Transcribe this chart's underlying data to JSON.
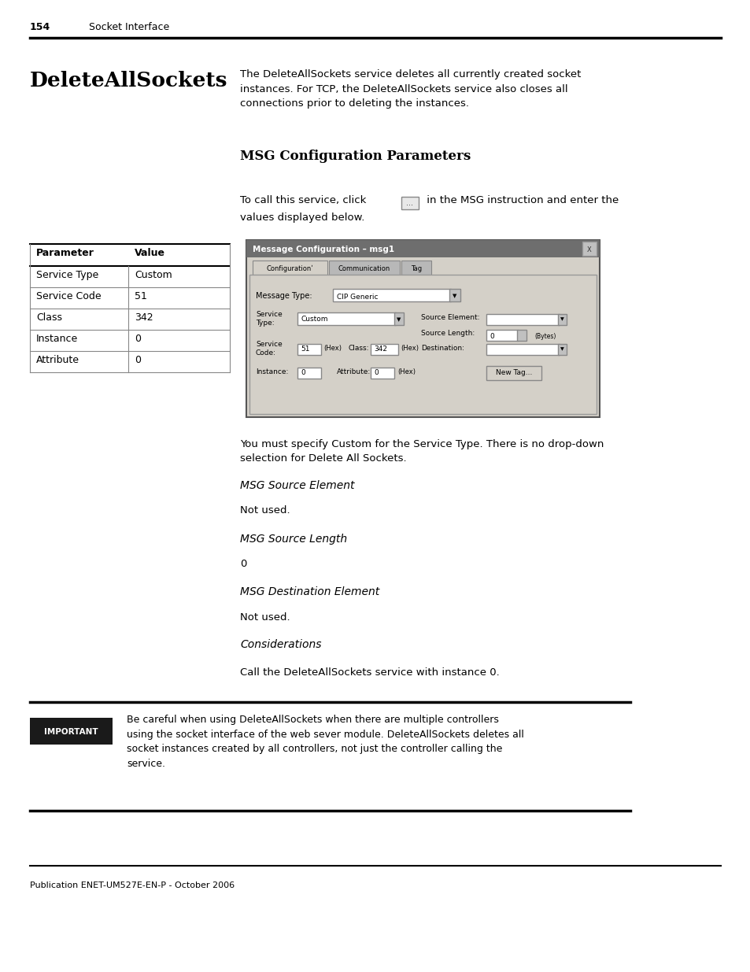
{
  "page_number": "154",
  "page_header_text": "Socket Interface",
  "title": "DeleteAllSockets",
  "intro_text": "The DeleteAllSockets service deletes all currently created socket\ninstances. For TCP, the DeleteAllSockets service also closes all\nconnections prior to deleting the instances.",
  "section_title": "MSG Configuration Parameters",
  "call_text_pre": "To call this service, click ",
  "call_text_post": " in the MSG instruction and enter the",
  "call_text_line2": "values displayed below.",
  "table_headers": [
    "Parameter",
    "Value"
  ],
  "table_rows": [
    [
      "Service Type",
      "Custom"
    ],
    [
      "Service Code",
      "51"
    ],
    [
      "Class",
      "342"
    ],
    [
      "Instance",
      "0"
    ],
    [
      "Attribute",
      "0"
    ]
  ],
  "dialog_title": "Message Configuration – msg1",
  "you_must_text": "You must specify Custom for the Service Type. There is no drop-down\nselection for Delete All Sockets.",
  "msg_source_element_heading": "MSG Source Element",
  "not_used_1": "Not used.",
  "msg_source_length_heading": "MSG Source Length",
  "zero_val": "0",
  "msg_dest_heading": "MSG Destination Element",
  "not_used_2": "Not used.",
  "considerations_heading": "Considerations",
  "call_service_text": "Call the DeleteAllSockets service with instance 0.",
  "important_label_text": "IMPORTANT",
  "important_text": "Be careful when using DeleteAllSockets when there are multiple controllers\nusing the socket interface of the web sever module. DeleteAllSockets deletes all\nsocket instances created by all controllers, not just the controller calling the\nservice.",
  "footer_text": "Publication ENET-UM527E-EN-P - October 2006",
  "bg_color": "#ffffff",
  "text_color": "#000000",
  "important_bg": "#1a1a1a",
  "dialog_title_bg": "#6e6e6e",
  "dialog_bg": "#d4d0c8"
}
